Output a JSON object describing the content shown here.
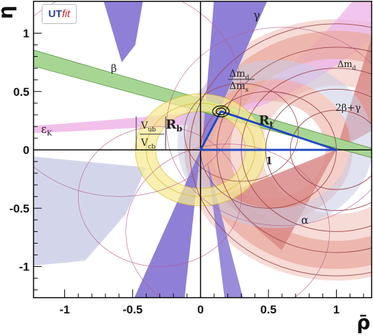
{
  "chart_data": {
    "type": "scatter",
    "title": "",
    "xlabel": "ρ̄",
    "ylabel": "η̄",
    "xlim": [
      -1.25,
      1.25
    ],
    "ylim": [
      -1.25,
      1.25
    ],
    "x_ticks": [
      "-1",
      "-0.5",
      "0",
      "0.5",
      "1"
    ],
    "y_ticks": [
      "1",
      "0.5",
      "0",
      "-0.5",
      "-1"
    ],
    "logo": {
      "main": "UT",
      "accent": "fit"
    },
    "apex": {
      "rho": 0.15,
      "eta": 0.33
    },
    "triangle_labels": {
      "rb": "R",
      "rb_sub": "b",
      "rt": "R",
      "rt_sub": "t",
      "base": "1"
    },
    "region_labels": {
      "gamma": "γ",
      "beta": "β",
      "alpha": "α",
      "epsk": "ε",
      "epsk_sub": "K",
      "dmd": "Δm",
      "dmd_sub": "d",
      "dms": "Δm",
      "dms_sub": "s",
      "dms_right": "Δm",
      "twobg": "2β+γ",
      "vub": "V",
      "vub_sub": "ub",
      "vcb": "V",
      "vcb_sub": "cb"
    },
    "colors": {
      "gamma": "#8f7fd6",
      "beta": "#a7d694",
      "beta_edge": "#4e8f3a",
      "alpha_dmd": "#e9a89b",
      "twobg": "#d98987",
      "epsk": "#eeb6e8",
      "vub_fill": "#f6ea98",
      "vub_edge": "#d8be2c",
      "dms": "#f3cfc8",
      "triangle": "#1f48c4",
      "circle_edge": "#9a4448"
    }
  }
}
